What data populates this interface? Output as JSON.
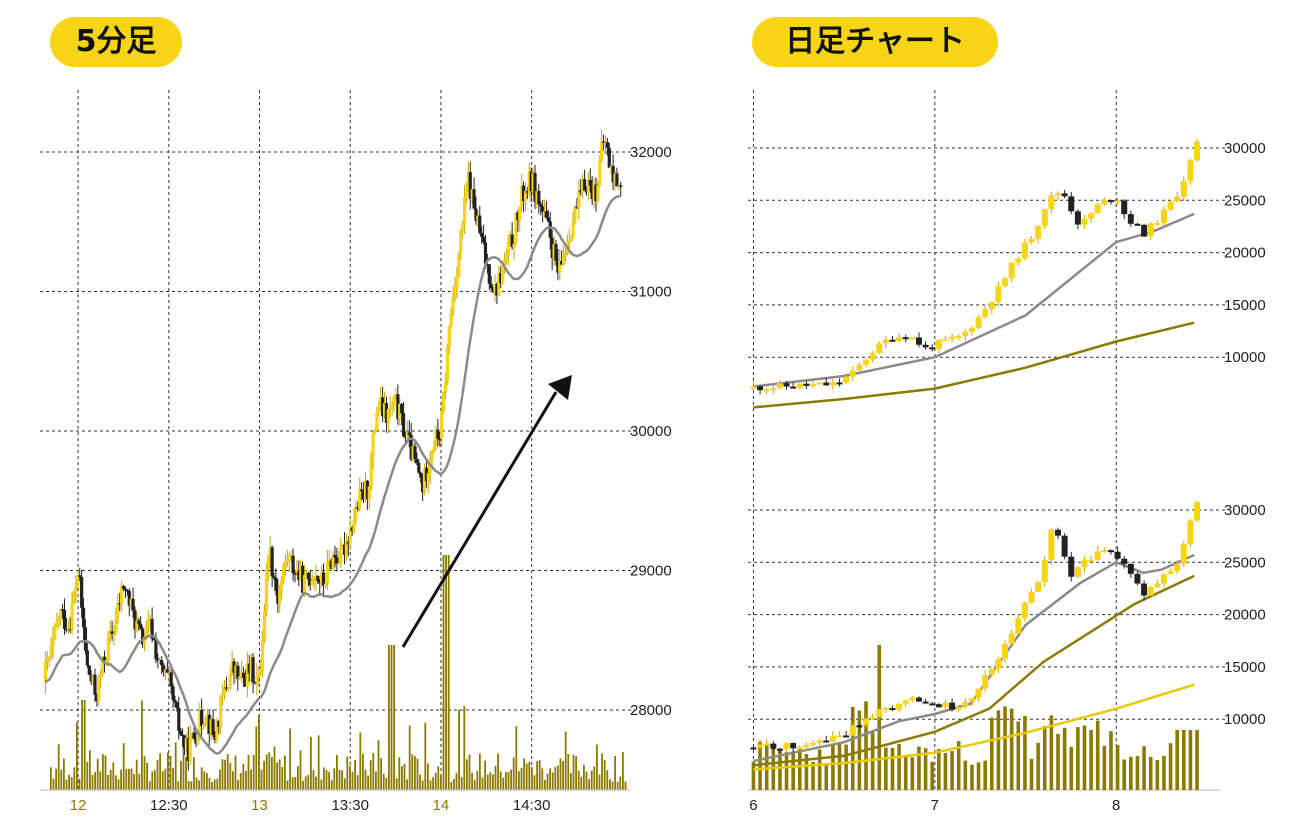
{
  "badges": {
    "left": "5分足",
    "right": "日足チャート"
  },
  "chart_data": [
    {
      "id": "intraday",
      "type": "candlestick",
      "title": "5分足",
      "x_labels": [
        {
          "text": "12",
          "hour": 12.0,
          "highlight": true
        },
        {
          "text": "12:30",
          "hour": 12.5,
          "highlight": false
        },
        {
          "text": "13",
          "hour": 13.0,
          "highlight": true
        },
        {
          "text": "13:30",
          "hour": 13.5,
          "highlight": false
        },
        {
          "text": "14",
          "hour": 14.0,
          "highlight": true
        },
        {
          "text": "14:30",
          "hour": 14.5,
          "highlight": false
        }
      ],
      "x_range": [
        11.79,
        15.02
      ],
      "y_ticks": [
        28000,
        29000,
        30000,
        31000,
        32000
      ],
      "ylim": [
        27500,
        32500
      ],
      "grid": true,
      "ma_color": "#8a8a8a",
      "annotation": "arrow",
      "price_anchors": [
        [
          11.8,
          28200
        ],
        [
          11.85,
          28400
        ],
        [
          11.9,
          28700
        ],
        [
          11.95,
          28600
        ],
        [
          12.0,
          29000
        ],
        [
          12.05,
          28300
        ],
        [
          12.1,
          28100
        ],
        [
          12.15,
          28400
        ],
        [
          12.2,
          28600
        ],
        [
          12.25,
          28900
        ],
        [
          12.3,
          28700
        ],
        [
          12.35,
          28500
        ],
        [
          12.4,
          28600
        ],
        [
          12.45,
          28300
        ],
        [
          12.5,
          28200
        ],
        [
          12.55,
          27900
        ],
        [
          12.6,
          27700
        ],
        [
          12.65,
          27850
        ],
        [
          12.7,
          28000
        ],
        [
          12.75,
          27800
        ],
        [
          12.8,
          28100
        ],
        [
          12.85,
          28300
        ],
        [
          12.9,
          28200
        ],
        [
          12.95,
          28300
        ],
        [
          13.0,
          28200
        ],
        [
          13.05,
          29200
        ],
        [
          13.1,
          28800
        ],
        [
          13.15,
          29100
        ],
        [
          13.2,
          29000
        ],
        [
          13.25,
          28900
        ],
        [
          13.3,
          29000
        ],
        [
          13.35,
          28900
        ],
        [
          13.4,
          29100
        ],
        [
          13.45,
          29100
        ],
        [
          13.5,
          29300
        ],
        [
          13.55,
          29500
        ],
        [
          13.6,
          29600
        ],
        [
          13.65,
          30200
        ],
        [
          13.7,
          30100
        ],
        [
          13.75,
          30200
        ],
        [
          13.8,
          30000
        ],
        [
          13.85,
          29800
        ],
        [
          13.9,
          29600
        ],
        [
          13.95,
          29900
        ],
        [
          14.0,
          30000
        ],
        [
          14.05,
          30800
        ],
        [
          14.1,
          31300
        ],
        [
          14.15,
          31800
        ],
        [
          14.2,
          31500
        ],
        [
          14.25,
          31200
        ],
        [
          14.3,
          31000
        ],
        [
          14.35,
          31200
        ],
        [
          14.4,
          31400
        ],
        [
          14.45,
          31700
        ],
        [
          14.5,
          31800
        ],
        [
          14.55,
          31600
        ],
        [
          14.6,
          31400
        ],
        [
          14.65,
          31100
        ],
        [
          14.7,
          31400
        ],
        [
          14.75,
          31600
        ],
        [
          14.8,
          31800
        ],
        [
          14.85,
          31700
        ],
        [
          14.9,
          32100
        ],
        [
          14.95,
          31800
        ],
        [
          15.0,
          31800
        ]
      ],
      "volume_scale": [
        0,
        1
      ]
    },
    {
      "id": "daily-upper",
      "type": "candlestick",
      "title": "日足チャート",
      "x_labels": [
        {
          "text": "6",
          "pos": 0.0
        },
        {
          "text": "7",
          "pos": 1.0
        },
        {
          "text": "8",
          "pos": 2.0
        }
      ],
      "x_range": [
        -0.03,
        2.55
      ],
      "y_ticks": [
        10000,
        15000,
        20000,
        25000,
        30000
      ],
      "ylim": [
        5000,
        32500
      ],
      "grid": true,
      "series": [
        {
          "name": "",
          "color": "#8a8a8a",
          "values": [
            [
              0,
              7200
            ],
            [
              0.5,
              8200
            ],
            [
              1.0,
              10000
            ],
            [
              1.5,
              14000
            ],
            [
              2.0,
              21000
            ],
            [
              2.2,
              22000
            ],
            [
              2.43,
              23700
            ]
          ]
        },
        {
          "name": "",
          "color": "#8c7a00",
          "values": [
            [
              0,
              5200
            ],
            [
              0.5,
              6000
            ],
            [
              1.0,
              7000
            ],
            [
              1.5,
              9000
            ],
            [
              2.0,
              11500
            ],
            [
              2.43,
              13300
            ]
          ]
        }
      ],
      "price_anchors": [
        [
          0,
          7100
        ],
        [
          0.3,
          7300
        ],
        [
          0.45,
          7400
        ],
        [
          0.55,
          8500
        ],
        [
          0.65,
          10500
        ],
        [
          0.75,
          11800
        ],
        [
          0.85,
          12200
        ],
        [
          0.95,
          10800
        ],
        [
          1.05,
          11500
        ],
        [
          1.15,
          12000
        ],
        [
          1.25,
          14000
        ],
        [
          1.35,
          16500
        ],
        [
          1.45,
          19500
        ],
        [
          1.55,
          22000
        ],
        [
          1.62,
          25000
        ],
        [
          1.7,
          26000
        ],
        [
          1.8,
          22500
        ],
        [
          1.9,
          24500
        ],
        [
          2.0,
          25500
        ],
        [
          2.05,
          23500
        ],
        [
          2.15,
          21800
        ],
        [
          2.25,
          23500
        ],
        [
          2.35,
          26000
        ],
        [
          2.45,
          30500
        ]
      ]
    },
    {
      "id": "daily-lower",
      "type": "candlestick",
      "x_range": [
        -0.03,
        2.55
      ],
      "y_ticks": [
        10000,
        15000,
        20000,
        25000,
        30000
      ],
      "ylim": [
        5000,
        34000
      ],
      "grid": true,
      "series": [
        {
          "name": "",
          "color": "#8a8a8a",
          "values": [
            [
              0,
              6000
            ],
            [
              0.5,
              7800
            ],
            [
              0.8,
              9800
            ],
            [
              1.0,
              10500
            ],
            [
              1.2,
              11500
            ],
            [
              1.5,
              19000
            ],
            [
              1.8,
              23000
            ],
            [
              2.0,
              25000
            ],
            [
              2.15,
              24000
            ],
            [
              2.25,
              24300
            ],
            [
              2.43,
              25700
            ]
          ]
        },
        {
          "name": "",
          "color": "#8c7a00",
          "values": [
            [
              0,
              5600
            ],
            [
              0.5,
              6500
            ],
            [
              1.0,
              8800
            ],
            [
              1.3,
              11000
            ],
            [
              1.6,
              15500
            ],
            [
              1.9,
              18800
            ],
            [
              2.1,
              21000
            ],
            [
              2.43,
              23700
            ]
          ]
        },
        {
          "name": "",
          "color": "#e8c800",
          "values": [
            [
              0,
              5200
            ],
            [
              0.5,
              5800
            ],
            [
              1.0,
              6800
            ],
            [
              1.5,
              8700
            ],
            [
              2.0,
              11000
            ],
            [
              2.43,
              13300
            ]
          ]
        }
      ],
      "price_anchors": [
        [
          0,
          7300
        ],
        [
          0.3,
          7500
        ],
        [
          0.5,
          8500
        ],
        [
          0.6,
          9800
        ],
        [
          0.7,
          10800
        ],
        [
          0.8,
          11300
        ],
        [
          0.9,
          12100
        ],
        [
          1.0,
          11500
        ],
        [
          1.1,
          11200
        ],
        [
          1.2,
          12000
        ],
        [
          1.3,
          14500
        ],
        [
          1.4,
          17500
        ],
        [
          1.5,
          21000
        ],
        [
          1.6,
          24500
        ],
        [
          1.65,
          29000
        ],
        [
          1.75,
          23500
        ],
        [
          1.85,
          25500
        ],
        [
          1.95,
          26300
        ],
        [
          2.05,
          24500
        ],
        [
          2.15,
          22000
        ],
        [
          2.25,
          23500
        ],
        [
          2.35,
          25000
        ],
        [
          2.43,
          30500
        ]
      ]
    }
  ]
}
